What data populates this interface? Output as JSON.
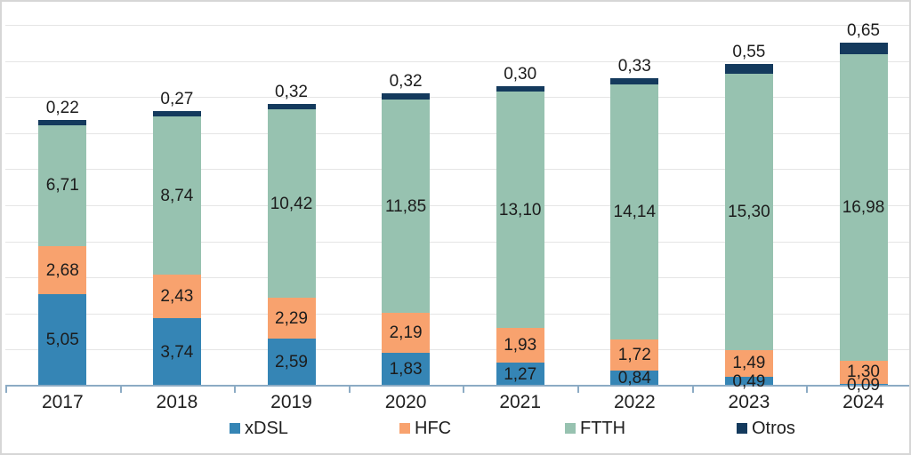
{
  "chart": {
    "background": "#ffffff",
    "frame_border_color": "#d6d6d6",
    "gridline_color": "#e5e5e5",
    "axis_line_color": "#8cabc4",
    "text_color": "#1f1f1f"
  },
  "chart_data": {
    "type": "bar",
    "stacked": true,
    "title": "",
    "xlabel": "",
    "ylabel": "",
    "ylim": [
      0,
      21.6
    ],
    "grid": true,
    "grid_step": 2,
    "legend_position": "bottom",
    "decimal_separator": ",",
    "categories": [
      "2017",
      "2018",
      "2019",
      "2020",
      "2021",
      "2022",
      "2023",
      "2024"
    ],
    "series": [
      {
        "name": "xDSL",
        "color": "#3585b5",
        "values": [
          5.05,
          3.74,
          2.59,
          1.83,
          1.27,
          0.84,
          0.49,
          0.09
        ],
        "labels": [
          "5,05",
          "3,74",
          "2,59",
          "1,83",
          "1,27",
          "0,84",
          "0,49",
          "0,09"
        ]
      },
      {
        "name": "HFC",
        "color": "#f8a26e",
        "values": [
          2.68,
          2.43,
          2.29,
          2.19,
          1.93,
          1.72,
          1.49,
          1.3
        ],
        "labels": [
          "2,68",
          "2,43",
          "2,29",
          "2,19",
          "1,93",
          "1,72",
          "1,49",
          "1,30"
        ]
      },
      {
        "name": "FTTH",
        "color": "#97c2b0",
        "values": [
          6.71,
          8.74,
          10.42,
          11.85,
          13.1,
          14.14,
          15.3,
          16.98
        ],
        "labels": [
          "6,71",
          "8,74",
          "10,42",
          "11,85",
          "13,10",
          "14,14",
          "15,30",
          "16,98"
        ]
      },
      {
        "name": "Otros",
        "color": "#143a5d",
        "values": [
          0.22,
          0.27,
          0.32,
          0.32,
          0.3,
          0.33,
          0.55,
          0.65
        ],
        "labels": [
          "0,22",
          "0,27",
          "0,32",
          "0,32",
          "0,30",
          "0,33",
          "0,55",
          "0,65"
        ],
        "label_placement": "above"
      }
    ]
  }
}
